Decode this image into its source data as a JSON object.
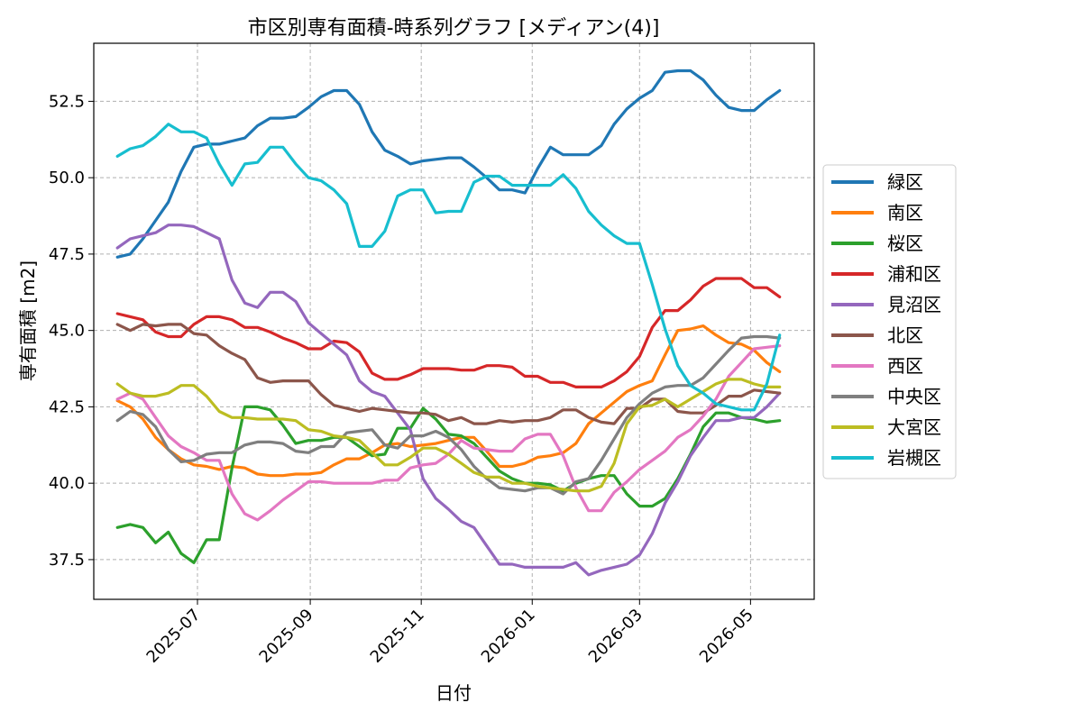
{
  "chart_data": {
    "type": "line",
    "title": "市区別専有面積-時系列グラフ [メディアン(4)]",
    "xlabel": "日付",
    "ylabel": "専有面積 [m2]",
    "x_start": "2025-05-18",
    "x_step_days": 7,
    "x_range": [
      "2025-05-05",
      "2026-06-05"
    ],
    "xticks": [
      {
        "date": "2025-07-01",
        "label": "2025-07"
      },
      {
        "date": "2025-09-01",
        "label": "2025-09"
      },
      {
        "date": "2025-11-01",
        "label": "2025-11"
      },
      {
        "date": "2026-01-01",
        "label": "2026-01"
      },
      {
        "date": "2026-03-01",
        "label": "2026-03"
      },
      {
        "date": "2026-05-01",
        "label": "2026-05"
      }
    ],
    "ylim": [
      36.2,
      54.4
    ],
    "yticks": [
      {
        "value": 37.5,
        "label": "37.5"
      },
      {
        "value": 40.0,
        "label": "40.0"
      },
      {
        "value": 42.5,
        "label": "42.5"
      },
      {
        "value": 45.0,
        "label": "45.0"
      },
      {
        "value": 47.5,
        "label": "47.5"
      },
      {
        "value": 50.0,
        "label": "50.0"
      },
      {
        "value": 52.5,
        "label": "52.5"
      }
    ],
    "grid": true,
    "legend_position": "right",
    "series": [
      {
        "name": "緑区",
        "color": "#1f77b4",
        "values": [
          47.4,
          47.5,
          48.0,
          48.6,
          49.2,
          50.2,
          51.0,
          51.1,
          51.1,
          51.2,
          51.3,
          51.7,
          51.95,
          51.95,
          52.0,
          52.3,
          52.65,
          52.85,
          52.85,
          52.4,
          51.5,
          50.9,
          50.7,
          50.45,
          50.55,
          50.6,
          50.65,
          50.65,
          50.35,
          50.0,
          49.6,
          49.6,
          49.5,
          50.3,
          51.0,
          50.75,
          50.75,
          50.75,
          51.05,
          51.75,
          52.25,
          52.6,
          52.85,
          53.45,
          53.5,
          53.5,
          53.2,
          52.7,
          52.3,
          52.2,
          52.2,
          52.55,
          52.85
        ]
      },
      {
        "name": "南区",
        "color": "#ff7f0e",
        "values": [
          42.7,
          42.5,
          42.1,
          41.5,
          41.1,
          40.8,
          40.6,
          40.55,
          40.45,
          40.55,
          40.5,
          40.3,
          40.25,
          40.25,
          40.3,
          40.3,
          40.35,
          40.6,
          40.8,
          40.8,
          41.0,
          41.25,
          41.3,
          41.2,
          41.25,
          41.3,
          41.4,
          41.5,
          41.5,
          41.05,
          40.55,
          40.55,
          40.65,
          40.85,
          40.9,
          41.0,
          41.3,
          41.95,
          42.3,
          42.65,
          43.0,
          43.2,
          43.35,
          44.2,
          45.0,
          45.05,
          45.15,
          44.85,
          44.6,
          44.55,
          44.35,
          43.95,
          43.65
        ]
      },
      {
        "name": "桜区",
        "color": "#2ca02c",
        "values": [
          38.55,
          38.65,
          38.55,
          38.05,
          38.4,
          37.7,
          37.4,
          38.15,
          38.15,
          40.5,
          42.5,
          42.5,
          42.4,
          41.9,
          41.3,
          41.4,
          41.4,
          41.5,
          41.5,
          41.2,
          40.9,
          40.95,
          41.8,
          41.8,
          42.45,
          42.1,
          41.6,
          41.55,
          41.3,
          40.85,
          40.4,
          40.15,
          40.0,
          40.0,
          39.95,
          39.75,
          40.0,
          40.15,
          40.25,
          40.25,
          39.65,
          39.25,
          39.25,
          39.5,
          40.15,
          40.95,
          41.85,
          42.3,
          42.3,
          42.15,
          42.1,
          42.0,
          42.05
        ]
      },
      {
        "name": "浦和区",
        "color": "#d62728",
        "values": [
          45.55,
          45.45,
          45.35,
          44.95,
          44.8,
          44.8,
          45.2,
          45.45,
          45.45,
          45.35,
          45.1,
          45.1,
          44.95,
          44.75,
          44.6,
          44.4,
          44.4,
          44.65,
          44.6,
          44.3,
          43.6,
          43.4,
          43.4,
          43.55,
          43.75,
          43.75,
          43.75,
          43.7,
          43.7,
          43.85,
          43.85,
          43.8,
          43.5,
          43.5,
          43.3,
          43.3,
          43.15,
          43.15,
          43.15,
          43.35,
          43.65,
          44.15,
          45.1,
          45.65,
          45.65,
          46.0,
          46.45,
          46.7,
          46.7,
          46.7,
          46.4,
          46.4,
          46.1
        ]
      },
      {
        "name": "見沼区",
        "color": "#9467bd",
        "values": [
          47.7,
          48.0,
          48.1,
          48.2,
          48.45,
          48.45,
          48.4,
          48.2,
          48.0,
          46.65,
          45.9,
          45.75,
          46.25,
          46.25,
          45.95,
          45.25,
          44.9,
          44.55,
          44.2,
          43.35,
          43.0,
          42.85,
          42.3,
          41.75,
          40.15,
          39.5,
          39.15,
          38.75,
          38.55,
          37.95,
          37.35,
          37.35,
          37.25,
          37.25,
          37.25,
          37.25,
          37.4,
          37.0,
          37.15,
          37.25,
          37.35,
          37.65,
          38.35,
          39.35,
          40.05,
          40.9,
          41.5,
          42.05,
          42.05,
          42.15,
          42.15,
          42.5,
          42.95
        ]
      },
      {
        "name": "北区",
        "color": "#8c564b",
        "values": [
          45.2,
          45.0,
          45.2,
          45.15,
          45.2,
          45.2,
          44.9,
          44.85,
          44.5,
          44.25,
          44.05,
          43.45,
          43.3,
          43.35,
          43.35,
          43.35,
          42.9,
          42.55,
          42.45,
          42.35,
          42.45,
          42.4,
          42.35,
          42.3,
          42.3,
          42.25,
          42.05,
          42.15,
          41.95,
          41.95,
          42.05,
          42.0,
          42.05,
          42.05,
          42.15,
          42.4,
          42.4,
          42.15,
          42.0,
          41.95,
          42.45,
          42.45,
          42.75,
          42.75,
          42.35,
          42.3,
          42.3,
          42.55,
          42.85,
          42.85,
          43.05,
          43.0,
          42.95
        ]
      },
      {
        "name": "西区",
        "color": "#e377c2",
        "values": [
          42.75,
          42.95,
          42.75,
          42.15,
          41.55,
          41.2,
          41.0,
          40.75,
          40.75,
          39.65,
          39.0,
          38.8,
          39.1,
          39.45,
          39.75,
          40.05,
          40.05,
          40.0,
          40.0,
          40.0,
          40.0,
          40.1,
          40.1,
          40.5,
          40.6,
          40.65,
          40.95,
          41.4,
          41.15,
          41.1,
          41.05,
          41.05,
          41.45,
          41.6,
          41.6,
          40.9,
          39.85,
          39.1,
          39.1,
          39.7,
          40.05,
          40.45,
          40.75,
          41.05,
          41.5,
          41.75,
          42.2,
          42.75,
          43.5,
          43.95,
          44.4,
          44.45,
          44.5
        ]
      },
      {
        "name": "中央区",
        "color": "#7f7f7f",
        "values": [
          42.05,
          42.35,
          42.25,
          41.85,
          41.1,
          40.7,
          40.75,
          40.95,
          41.0,
          41.0,
          41.25,
          41.35,
          41.35,
          41.3,
          41.05,
          41.0,
          41.2,
          41.2,
          41.65,
          41.7,
          41.75,
          41.25,
          41.15,
          41.55,
          41.55,
          41.7,
          41.5,
          41.1,
          40.55,
          40.15,
          39.85,
          39.8,
          39.75,
          39.85,
          39.85,
          39.65,
          40.05,
          40.15,
          40.75,
          41.45,
          42.15,
          42.6,
          42.95,
          43.15,
          43.2,
          43.2,
          43.45,
          43.9,
          44.35,
          44.75,
          44.8,
          44.8,
          44.75
        ]
      },
      {
        "name": "大宮区",
        "color": "#bcbd22",
        "values": [
          43.25,
          42.95,
          42.85,
          42.85,
          42.95,
          43.2,
          43.2,
          42.85,
          42.35,
          42.15,
          42.15,
          42.1,
          42.1,
          42.1,
          42.05,
          41.75,
          41.7,
          41.55,
          41.5,
          41.4,
          41.0,
          40.6,
          40.6,
          40.85,
          41.15,
          41.15,
          40.95,
          40.65,
          40.35,
          40.2,
          40.2,
          40.0,
          40.0,
          39.9,
          39.85,
          39.8,
          39.75,
          39.75,
          39.9,
          40.65,
          41.95,
          42.5,
          42.55,
          42.75,
          42.5,
          42.75,
          43.0,
          43.25,
          43.4,
          43.4,
          43.25,
          43.15,
          43.15
        ]
      },
      {
        "name": "岩槻区",
        "color": "#17becf",
        "values": [
          50.7,
          50.95,
          51.05,
          51.35,
          51.75,
          51.5,
          51.5,
          51.3,
          50.45,
          49.75,
          50.45,
          50.5,
          51.0,
          51.0,
          50.45,
          50.0,
          49.9,
          49.6,
          49.15,
          47.75,
          47.75,
          48.25,
          49.4,
          49.6,
          49.6,
          48.85,
          48.9,
          48.9,
          49.85,
          50.05,
          50.05,
          49.75,
          49.75,
          49.75,
          49.75,
          50.1,
          49.65,
          48.9,
          48.45,
          48.1,
          47.85,
          47.85,
          46.5,
          45.05,
          43.85,
          43.2,
          42.95,
          42.6,
          42.5,
          42.4,
          42.4,
          43.25,
          44.85
        ]
      }
    ]
  }
}
